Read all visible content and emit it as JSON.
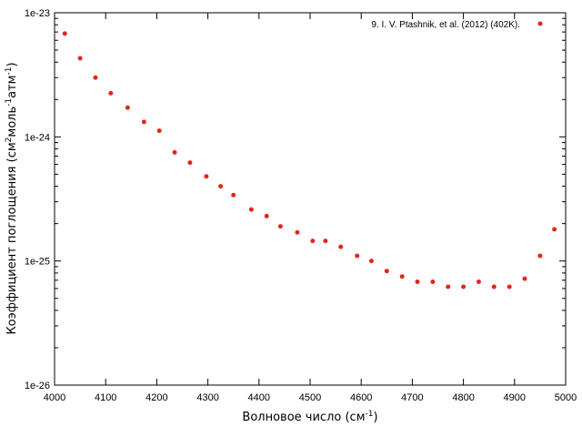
{
  "chart_data": {
    "type": "scatter",
    "xlabel": "Волновое число (см",
    "xlabel_sup": "-1",
    "xlabel_end": ")",
    "ylabel_parts": [
      {
        "text": "Коэффициент поглощения (см",
        "sup": false
      },
      {
        "text": "2",
        "sup": true
      },
      {
        "text": "моль",
        "sup": false
      },
      {
        "text": "-1",
        "sup": true
      },
      {
        "text": "атм",
        "sup": false
      },
      {
        "text": "-1",
        "sup": true
      },
      {
        "text": ")",
        "sup": false
      }
    ],
    "xlim": [
      4000,
      5000
    ],
    "ylim": [
      1e-26,
      1e-23
    ],
    "yscale": "log",
    "x_ticks": [
      4000,
      4100,
      4200,
      4300,
      4400,
      4500,
      4600,
      4700,
      4800,
      4900,
      5000
    ],
    "y_ticks": [
      {
        "value": 1e-26,
        "label": "1e-26"
      },
      {
        "value": 1e-25,
        "label": "1e-25"
      },
      {
        "value": 1e-24,
        "label": "1e-24"
      },
      {
        "value": 1e-23,
        "label": "1e-23"
      }
    ],
    "grid": false,
    "legend_position": "top-right",
    "series": [
      {
        "name": "9. I. V. Ptashnik, et al. (2012) (402K).",
        "color": "#e3261a",
        "x": [
          4020,
          4050,
          4080,
          4110,
          4143,
          4175,
          4205,
          4235,
          4265,
          4297,
          4325,
          4350,
          4385,
          4415,
          4442,
          4475,
          4505,
          4530,
          4560,
          4592,
          4620,
          4650,
          4680,
          4710,
          4740,
          4770,
          4800,
          4830,
          4860,
          4890,
          4920,
          4950,
          4978
        ],
        "y": [
          6.8e-24,
          4.3e-24,
          3e-24,
          2.25e-24,
          1.72e-24,
          1.32e-24,
          1.12e-24,
          7.5e-25,
          6.2e-25,
          4.8e-25,
          4e-25,
          3.4e-25,
          2.6e-25,
          2.3e-25,
          1.9e-25,
          1.7e-25,
          1.45e-25,
          1.45e-25,
          1.3e-25,
          1.1e-25,
          1e-25,
          8.3e-26,
          7.5e-26,
          6.8e-26,
          6.8e-26,
          6.2e-26,
          6.2e-26,
          6.8e-26,
          6.2e-26,
          6.2e-26,
          7.2e-26,
          1.1e-25,
          1.8e-25
        ]
      }
    ]
  }
}
